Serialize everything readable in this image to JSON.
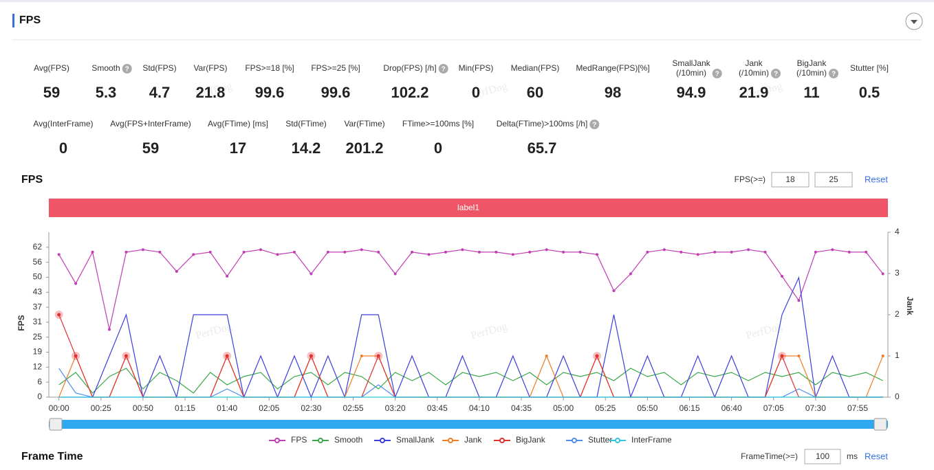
{
  "header": {
    "title": "FPS"
  },
  "watermark": "PerfDog",
  "stats_rows": [
    [
      {
        "label": [
          "Avg(FPS)"
        ],
        "value": 59
      },
      {
        "label": [
          "Smooth"
        ],
        "value": 5.3,
        "help": true
      },
      {
        "label": [
          "Std(FPS)"
        ],
        "value": 4.7
      },
      {
        "label": [
          "Var(FPS)"
        ],
        "value": 21.8
      },
      {
        "label": [
          "FPS>=18 [%]"
        ],
        "value": 99.6
      },
      {
        "label": [
          "FPS>=25 [%]"
        ],
        "value": 99.6
      },
      {
        "label": [
          "Drop(FPS) [/h]"
        ],
        "value": 102.2,
        "help": true
      },
      {
        "label": [
          "Min(FPS)"
        ],
        "value": 0
      },
      {
        "label": [
          "Median(FPS)"
        ],
        "value": 60
      },
      {
        "label": [
          "MedRange(FPS)[%]"
        ],
        "value": 98
      },
      {
        "label": [
          "SmallJank",
          "(/10min)"
        ],
        "value": 94.9,
        "help": true
      },
      {
        "label": [
          "Jank",
          "(/10min)"
        ],
        "value": 21.9,
        "help": true
      },
      {
        "label": [
          "BigJank",
          "(/10min)"
        ],
        "value": 11,
        "help": true
      },
      {
        "label": [
          "Stutter [%]"
        ],
        "value": 0.5
      }
    ],
    [
      {
        "label": [
          "Avg(InterFrame)"
        ],
        "value": 0
      },
      {
        "label": [
          "Avg(FPS+InterFrame)"
        ],
        "value": 59
      },
      {
        "label": [
          "Avg(FTime) [ms]"
        ],
        "value": 17
      },
      {
        "label": [
          "Std(FTime)"
        ],
        "value": 14.2
      },
      {
        "label": [
          "Var(FTime)"
        ],
        "value": 201.2
      },
      {
        "label": [
          "FTime>=100ms [%]"
        ],
        "value": 0
      },
      {
        "label": [
          "Delta(FTime)>100ms [/h]"
        ],
        "value": 65.7,
        "help": true
      }
    ]
  ],
  "fps_section": {
    "title": "FPS",
    "threshold_label": "FPS(>=)",
    "thresholds": [
      18,
      25
    ],
    "reset": "Reset",
    "label_bar": "label1"
  },
  "chart_data": {
    "type": "line",
    "ylabel": "FPS",
    "y2label": "Jank",
    "xlim": [
      -6,
      493
    ],
    "xticks": [
      {
        "value": 0,
        "label": "00:00"
      },
      {
        "value": 25,
        "label": "00:25"
      },
      {
        "value": 50,
        "label": "00:50"
      },
      {
        "value": 75,
        "label": "01:15"
      },
      {
        "value": 100,
        "label": "01:40"
      },
      {
        "value": 125,
        "label": "02:05"
      },
      {
        "value": 150,
        "label": "02:30"
      },
      {
        "value": 175,
        "label": "02:55"
      },
      {
        "value": 200,
        "label": "03:20"
      },
      {
        "value": 225,
        "label": "03:45"
      },
      {
        "value": 250,
        "label": "04:10"
      },
      {
        "value": 275,
        "label": "04:35"
      },
      {
        "value": 300,
        "label": "05:00"
      },
      {
        "value": 325,
        "label": "05:25"
      },
      {
        "value": 350,
        "label": "05:50"
      },
      {
        "value": 375,
        "label": "06:15"
      },
      {
        "value": 400,
        "label": "06:40"
      },
      {
        "value": 425,
        "label": "07:05"
      },
      {
        "value": 450,
        "label": "07:30"
      },
      {
        "value": 475,
        "label": "07:55"
      }
    ],
    "ylim": [
      0,
      68.2
    ],
    "yticks": [
      0,
      {
        "value": 6.2,
        "label": "6"
      },
      {
        "value": 12.4,
        "label": "12"
      },
      {
        "value": 18.6,
        "label": "19"
      },
      {
        "value": 24.8,
        "label": "25"
      },
      31,
      {
        "value": 37.2,
        "label": "37"
      },
      {
        "value": 43.4,
        "label": "43"
      },
      {
        "value": 49.6,
        "label": "50"
      },
      {
        "value": 55.8,
        "label": "56"
      },
      62
    ],
    "y2lim": [
      0,
      4
    ],
    "y2ticks": [
      0,
      1,
      2,
      3,
      4
    ],
    "grid": false,
    "x": [
      0,
      10,
      20,
      30,
      40,
      50,
      60,
      70,
      80,
      90,
      100,
      110,
      120,
      130,
      140,
      150,
      160,
      170,
      180,
      190,
      200,
      210,
      220,
      230,
      240,
      250,
      260,
      270,
      280,
      290,
      300,
      310,
      320,
      330,
      340,
      350,
      360,
      370,
      380,
      390,
      400,
      410,
      420,
      430,
      440,
      450,
      460,
      470,
      480,
      490
    ],
    "series": [
      {
        "name": "FPS",
        "color": "#c23cb4",
        "values": [
          59,
          47,
          60,
          28,
          60,
          61,
          60,
          52,
          59,
          60,
          50,
          60,
          61,
          59,
          60,
          51,
          60,
          60,
          61,
          60,
          51,
          60,
          59,
          60,
          61,
          60,
          60,
          59,
          60,
          61,
          60,
          60,
          59,
          44,
          51,
          60,
          61,
          60,
          59,
          60,
          60,
          61,
          60,
          50,
          40,
          60,
          61,
          60,
          60,
          51
        ]
      },
      {
        "name": "Smooth",
        "color": "#3aa84a",
        "axis": "y2",
        "values": [
          0.3,
          0.6,
          0.1,
          0.5,
          0.7,
          0.2,
          0.6,
          0.4,
          0.1,
          0.6,
          0.3,
          0.5,
          0.6,
          0.2,
          0.5,
          0.6,
          0.3,
          0.6,
          0.5,
          0.2,
          0.6,
          0.4,
          0.6,
          0.3,
          0.6,
          0.5,
          0.6,
          0.4,
          0.6,
          0.3,
          0.6,
          0.5,
          0.6,
          0.4,
          0.7,
          0.5,
          0.6,
          0.3,
          0.6,
          0.5,
          0.6,
          0.4,
          0.6,
          0.5,
          0.6,
          0.3,
          0.6,
          0.5,
          0.6,
          0.4
        ]
      },
      {
        "name": "SmallJank",
        "color": "#3a3ee0",
        "axis": "y2",
        "values": [
          0,
          0,
          0,
          1,
          2,
          0,
          1,
          0,
          2,
          2,
          2,
          0,
          1,
          0,
          1,
          0,
          1,
          0,
          2,
          2,
          0,
          1,
          0,
          0,
          1,
          0,
          0,
          1,
          0,
          0,
          1,
          0,
          0,
          2,
          0,
          1,
          0,
          0,
          1,
          0,
          1,
          0,
          0,
          2,
          2.9,
          0,
          1,
          0,
          0,
          0
        ]
      },
      {
        "name": "Jank",
        "color": "#f07c26",
        "axis": "y2",
        "values": [
          0,
          1,
          0,
          0,
          1,
          0,
          0,
          0,
          0,
          0,
          1,
          0,
          0,
          0,
          0,
          1,
          0,
          0,
          1,
          1,
          0,
          0,
          0,
          0,
          0,
          0,
          0,
          0,
          0,
          1,
          0,
          0,
          1,
          0,
          0,
          0,
          0,
          0,
          0,
          0,
          0,
          0,
          0,
          1,
          1,
          0,
          0,
          0,
          0,
          1
        ]
      },
      {
        "name": "BigJank",
        "color": "#e03030",
        "axis": "y2",
        "values": [
          2,
          1,
          0,
          0,
          1,
          0,
          0,
          0,
          0,
          0,
          1,
          0,
          0,
          0,
          0,
          1,
          0,
          0,
          0,
          1,
          0,
          0,
          0,
          0,
          0,
          0,
          0,
          0,
          0,
          0,
          0,
          0,
          1,
          0,
          0,
          0,
          0,
          0,
          0,
          0,
          0,
          0,
          0,
          1,
          0,
          0,
          0,
          0,
          0,
          0
        ]
      },
      {
        "name": "Stutter",
        "color": "#4a8ef0",
        "axis": "y2",
        "values": [
          0.7,
          0.1,
          0,
          0,
          0,
          0,
          0,
          0,
          0,
          0,
          0.2,
          0,
          0,
          0,
          0,
          0,
          0,
          0,
          0,
          0.3,
          0,
          0,
          0,
          0,
          0,
          0,
          0,
          0,
          0,
          0,
          0,
          0,
          0,
          0,
          0,
          0,
          0,
          0,
          0,
          0,
          0,
          0,
          0,
          0,
          0.2,
          0,
          0,
          0,
          0,
          0
        ]
      },
      {
        "name": "InterFrame",
        "color": "#2cc8d8",
        "axis": "y2",
        "values": [
          0,
          0,
          0,
          0,
          0,
          0,
          0,
          0,
          0,
          0,
          0,
          0,
          0,
          0,
          0,
          0,
          0,
          0,
          0,
          0,
          0,
          0,
          0,
          0,
          0,
          0,
          0,
          0,
          0,
          0,
          0,
          0,
          0,
          0,
          0,
          0,
          0,
          0,
          0,
          0,
          0,
          0,
          0,
          0,
          0,
          0,
          0,
          0,
          0,
          0
        ]
      }
    ]
  },
  "frame_time_section": {
    "title": "Frame Time",
    "threshold_label": "FrameTime(>=)",
    "threshold": 100,
    "unit": "ms",
    "reset": "Reset"
  }
}
